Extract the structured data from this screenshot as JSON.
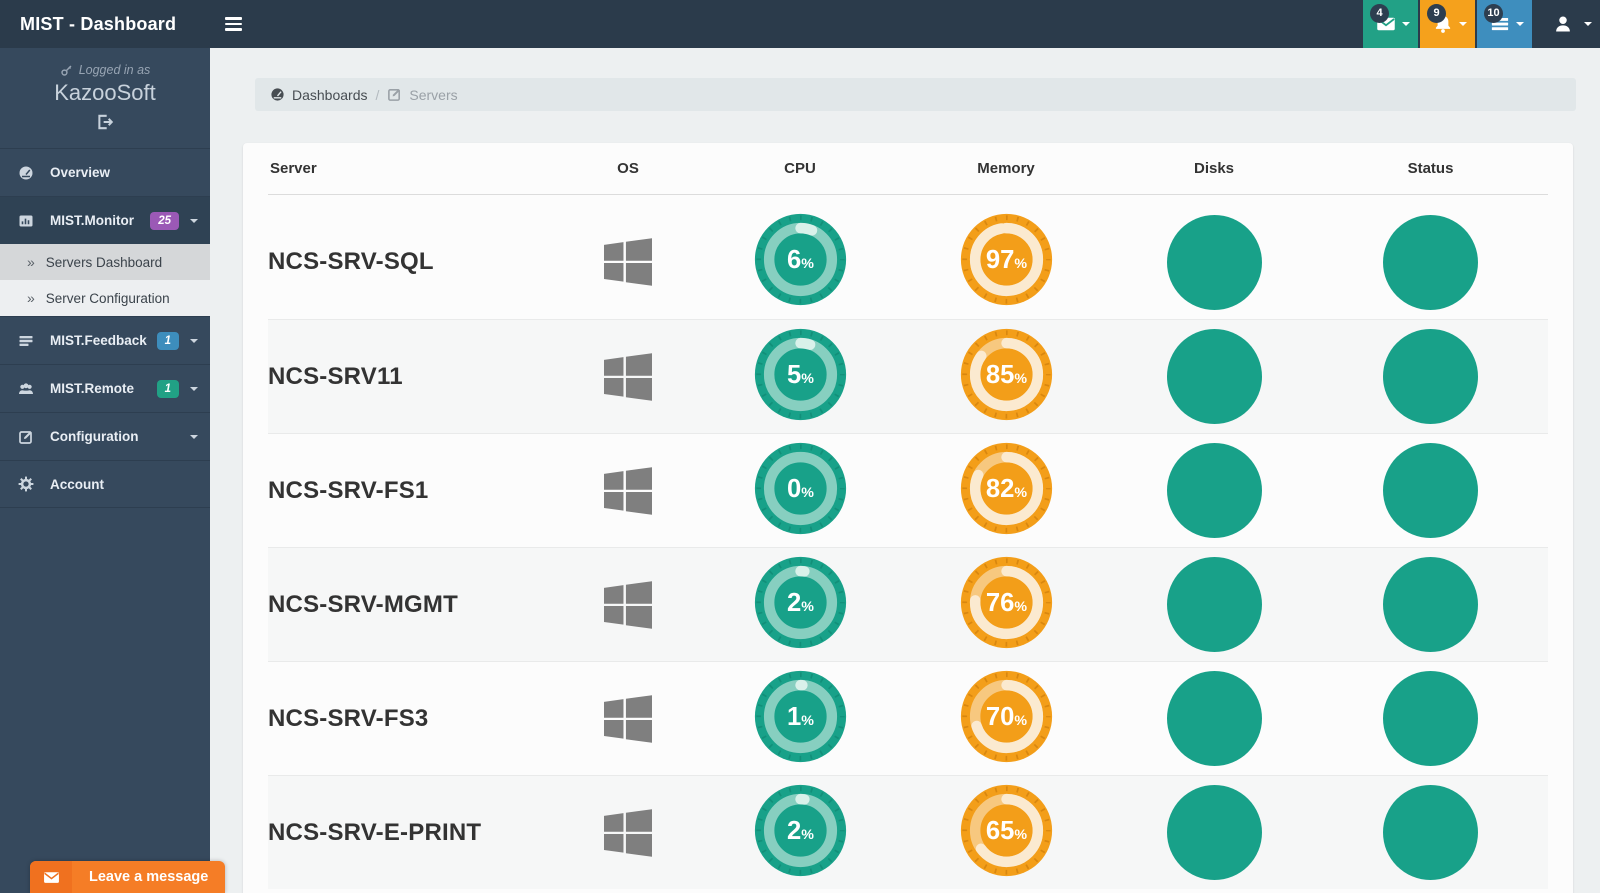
{
  "navbar": {
    "title": "MIST - Dashboard",
    "notifications": [
      {
        "name": "messages",
        "count": "4"
      },
      {
        "name": "alerts",
        "count": "9"
      },
      {
        "name": "tasks",
        "count": "10"
      }
    ]
  },
  "sidebar": {
    "logged_in_label": "Logged in as",
    "username": "KazooSoft",
    "submenu_marker": "»",
    "items": [
      {
        "label": "Overview"
      },
      {
        "label": "MIST.Monitor",
        "badge": "25"
      },
      {
        "label": "MIST.Feedback",
        "badge": "1"
      },
      {
        "label": "MIST.Remote",
        "badge": "1"
      },
      {
        "label": "Configuration"
      },
      {
        "label": "Account"
      }
    ],
    "submenu": [
      {
        "label": "Servers Dashboard"
      },
      {
        "label": "Server Configuration"
      }
    ]
  },
  "breadcrumb": {
    "home": "Dashboards",
    "separator": "/",
    "current": "Servers"
  },
  "chat_button": {
    "label": "Leave a message"
  },
  "table": {
    "unit": "%",
    "columns": [
      "Server",
      "OS",
      "CPU",
      "Memory",
      "Disks",
      "Status"
    ],
    "rows": [
      {
        "server": "NCS-SRV-SQL",
        "os": "windows",
        "cpu": 6,
        "memory": 97,
        "disks": "ok",
        "status": "ok"
      },
      {
        "server": "NCS-SRV11",
        "os": "windows",
        "cpu": 5,
        "memory": 85,
        "disks": "ok",
        "status": "ok"
      },
      {
        "server": "NCS-SRV-FS1",
        "os": "windows",
        "cpu": 0,
        "memory": 82,
        "disks": "ok",
        "status": "ok"
      },
      {
        "server": "NCS-SRV-MGMT",
        "os": "windows",
        "cpu": 2,
        "memory": 76,
        "disks": "ok",
        "status": "ok"
      },
      {
        "server": "NCS-SRV-FS3",
        "os": "windows",
        "cpu": 1,
        "memory": 70,
        "disks": "ok",
        "status": "ok"
      },
      {
        "server": "NCS-SRV-E-PRINT",
        "os": "windows",
        "cpu": 2,
        "memory": 65,
        "disks": "ok",
        "status": "ok"
      }
    ]
  },
  "colors": {
    "nav_messages_bg": "#22a186",
    "nav_alerts_bg": "#f5a11c",
    "nav_tasks_bg": "#3e8ebe",
    "badge_dark": "#2d3e50",
    "badge_monitor": "#9b59b6",
    "badge_feedback": "#3d8dbc",
    "badge_remote": "#21a185",
    "cpu_gauge": {
      "main": "#18a189",
      "tick": "#128f79",
      "track": "#87cfc0",
      "fill": "#d9f1ea"
    },
    "memory_gauge": {
      "main": "#f39e19",
      "tick": "#d9870f",
      "track": "#f7c87f",
      "fill": "#fbead0"
    },
    "ok_circle": "#18a189",
    "chat_bg": "#f57d26",
    "os_icon": "#7f7f7f"
  }
}
